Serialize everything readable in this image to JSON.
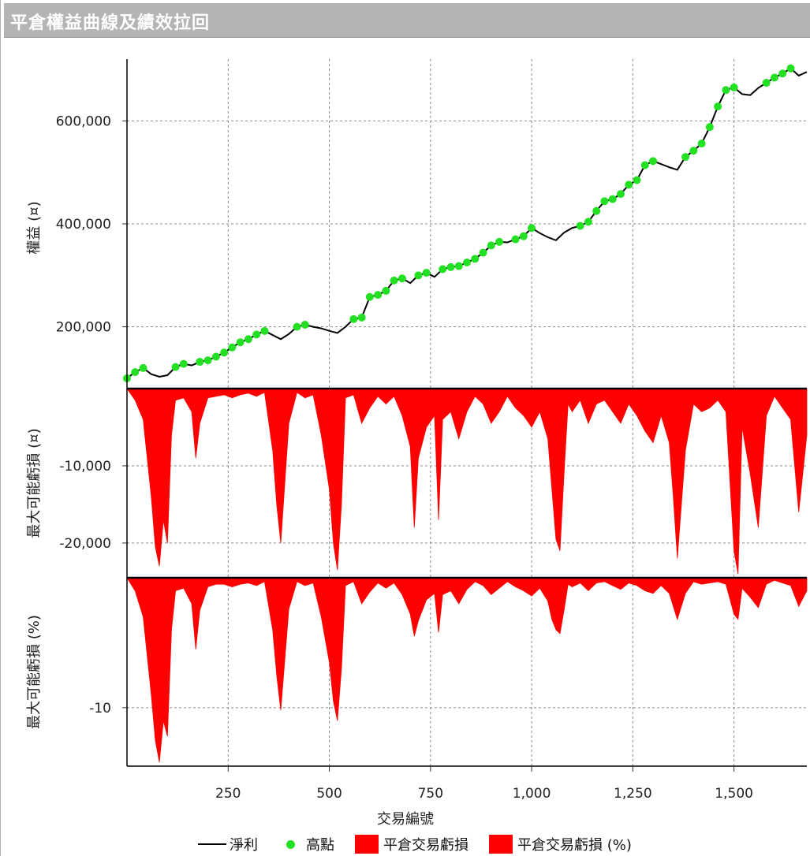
{
  "title": "平倉權益曲線及績效拉回",
  "colors": {
    "equity_line": "#000000",
    "high_point": "#22e022",
    "drawdown": "#ff0000",
    "grid": "#888888"
  },
  "chart_data": [
    {
      "type": "line",
      "panel": "equity",
      "ylabel": "權益 (¤)",
      "ylim": [
        80000,
        720000
      ],
      "yticks": [
        200000,
        400000,
        600000
      ],
      "ytick_labels": [
        "200,000",
        "400,000",
        "600,000"
      ],
      "xlim": [
        0,
        1680
      ],
      "series": [
        {
          "name": "淨利",
          "x": [
            0,
            20,
            40,
            60,
            80,
            100,
            120,
            140,
            160,
            180,
            200,
            220,
            240,
            260,
            280,
            300,
            320,
            340,
            360,
            380,
            400,
            420,
            440,
            460,
            480,
            500,
            520,
            540,
            560,
            580,
            600,
            620,
            640,
            660,
            680,
            700,
            720,
            740,
            760,
            780,
            800,
            820,
            840,
            860,
            880,
            900,
            920,
            940,
            960,
            980,
            1000,
            1020,
            1040,
            1060,
            1080,
            1100,
            1120,
            1140,
            1160,
            1180,
            1200,
            1220,
            1240,
            1260,
            1280,
            1300,
            1320,
            1340,
            1360,
            1380,
            1400,
            1420,
            1440,
            1460,
            1480,
            1500,
            1520,
            1540,
            1560,
            1580,
            1600,
            1620,
            1640,
            1660,
            1680
          ],
          "y": [
            100000,
            112000,
            120000,
            108000,
            103000,
            106000,
            122000,
            128000,
            125000,
            132000,
            135000,
            142000,
            150000,
            160000,
            170000,
            176000,
            185000,
            192000,
            184000,
            176000,
            186000,
            200000,
            204000,
            200000,
            197000,
            192000,
            188000,
            200000,
            215000,
            218000,
            258000,
            262000,
            270000,
            290000,
            294000,
            285000,
            300000,
            305000,
            297000,
            312000,
            316000,
            318000,
            325000,
            332000,
            344000,
            358000,
            365000,
            364000,
            370000,
            376000,
            392000,
            382000,
            374000,
            368000,
            383000,
            392000,
            396000,
            404000,
            425000,
            444000,
            448000,
            458000,
            476000,
            485000,
            514000,
            522000,
            516000,
            510000,
            505000,
            530000,
            542000,
            556000,
            588000,
            628000,
            660000,
            665000,
            652000,
            650000,
            664000,
            674000,
            684000,
            692000,
            702000,
            688000,
            695000
          ]
        },
        {
          "name": "高點",
          "marker": "dot"
        }
      ]
    },
    {
      "type": "area",
      "panel": "drawdown_amount",
      "ylabel": "最大可能虧損 (¤)",
      "ylim": [
        -24500,
        0
      ],
      "yticks": [
        -10000,
        -20000
      ],
      "ytick_labels": [
        "-10,000",
        "-20,000"
      ],
      "series": [
        {
          "name": "平倉交易虧損",
          "x": [
            0,
            20,
            40,
            60,
            70,
            80,
            90,
            100,
            110,
            120,
            140,
            160,
            170,
            180,
            200,
            220,
            240,
            260,
            280,
            300,
            320,
            340,
            360,
            370,
            380,
            400,
            420,
            440,
            460,
            480,
            500,
            510,
            520,
            530,
            540,
            560,
            580,
            600,
            620,
            640,
            660,
            680,
            700,
            710,
            720,
            740,
            760,
            770,
            780,
            800,
            820,
            840,
            860,
            880,
            900,
            920,
            940,
            960,
            980,
            1000,
            1020,
            1040,
            1050,
            1060,
            1070,
            1080,
            1090,
            1100,
            1120,
            1140,
            1160,
            1180,
            1200,
            1220,
            1240,
            1260,
            1280,
            1300,
            1320,
            1340,
            1350,
            1360,
            1380,
            1400,
            1420,
            1440,
            1460,
            1480,
            1500,
            1510,
            1520,
            1540,
            1560,
            1580,
            1600,
            1620,
            1640,
            1660,
            1680
          ],
          "y": [
            0,
            -1500,
            -4000,
            -14000,
            -20500,
            -23000,
            -17000,
            -20000,
            -6000,
            -1500,
            -1200,
            -3000,
            -9000,
            -4500,
            -1200,
            -1000,
            -800,
            -1200,
            -800,
            -600,
            -1000,
            -500,
            -8000,
            -15000,
            -20000,
            -4500,
            -500,
            -1200,
            -800,
            -6000,
            -13000,
            -20000,
            -23500,
            -15000,
            -1200,
            -800,
            -4500,
            -2500,
            -1000,
            -2000,
            -1000,
            -3500,
            -7500,
            -18000,
            -9000,
            -5000,
            -3500,
            -17000,
            -4000,
            -3000,
            -6500,
            -3000,
            -1000,
            -2000,
            -4500,
            -3000,
            -1000,
            -2500,
            -3500,
            -5000,
            -3000,
            -6500,
            -13000,
            -19500,
            -21000,
            -11000,
            -2000,
            -3000,
            -1500,
            -4500,
            -2000,
            -1500,
            -3000,
            -4500,
            -2000,
            -3500,
            -5500,
            -7000,
            -3500,
            -7000,
            -14000,
            -22000,
            -8000,
            -2000,
            -3000,
            -2500,
            -1500,
            -3000,
            -21000,
            -24000,
            -5000,
            -11000,
            -18000,
            -3500,
            -1000,
            -2500,
            -4000,
            -16000,
            -6000
          ]
        }
      ]
    },
    {
      "type": "area",
      "panel": "drawdown_percent",
      "ylabel": "最大可能虧損 (%)",
      "ylim": [
        -14.5,
        0
      ],
      "yticks": [
        -10
      ],
      "ytick_labels": [
        "-10"
      ],
      "xlabel": "交易編號",
      "xticks": [
        250,
        500,
        750,
        1000,
        1250,
        1500
      ],
      "xtick_labels": [
        "250",
        "500",
        "750",
        "1,000",
        "1,250",
        "1,500"
      ],
      "series": [
        {
          "name": "平倉交易虧損 (%)",
          "x": [
            0,
            20,
            40,
            60,
            70,
            80,
            90,
            100,
            110,
            120,
            140,
            160,
            170,
            180,
            200,
            220,
            240,
            260,
            280,
            300,
            320,
            340,
            360,
            370,
            380,
            400,
            420,
            440,
            460,
            480,
            500,
            510,
            520,
            530,
            540,
            560,
            580,
            600,
            620,
            640,
            660,
            680,
            700,
            710,
            720,
            740,
            760,
            770,
            780,
            800,
            820,
            840,
            860,
            880,
            900,
            920,
            940,
            960,
            980,
            1000,
            1020,
            1040,
            1050,
            1060,
            1070,
            1080,
            1090,
            1100,
            1120,
            1140,
            1160,
            1180,
            1200,
            1220,
            1240,
            1260,
            1280,
            1300,
            1320,
            1340,
            1350,
            1360,
            1380,
            1400,
            1420,
            1440,
            1460,
            1480,
            1500,
            1510,
            1520,
            1540,
            1560,
            1580,
            1600,
            1620,
            1640,
            1660,
            1680
          ],
          "y": [
            0,
            -1,
            -3,
            -9,
            -12.5,
            -14.2,
            -11,
            -12.2,
            -4,
            -1,
            -0.8,
            -2,
            -5.5,
            -2.5,
            -0.7,
            -0.5,
            -0.5,
            -0.7,
            -0.5,
            -0.4,
            -0.6,
            -0.3,
            -4,
            -7.5,
            -10.2,
            -2.4,
            -0.3,
            -0.6,
            -0.4,
            -3,
            -6.5,
            -9.5,
            -11,
            -7,
            -0.6,
            -0.3,
            -2,
            -1.1,
            -0.4,
            -0.8,
            -0.4,
            -1.3,
            -2.8,
            -4.5,
            -3.3,
            -1.7,
            -1.2,
            -4.2,
            -1.3,
            -1,
            -2,
            -0.9,
            -0.3,
            -0.6,
            -1.3,
            -0.8,
            -0.3,
            -0.7,
            -1,
            -1.4,
            -0.8,
            -1.8,
            -3.2,
            -4,
            -4.3,
            -2.5,
            -0.5,
            -0.7,
            -0.4,
            -1,
            -0.4,
            -0.3,
            -0.6,
            -0.9,
            -0.4,
            -0.6,
            -1,
            -1.2,
            -0.6,
            -1.2,
            -2.2,
            -3.2,
            -1.2,
            -0.3,
            -0.5,
            -0.4,
            -0.3,
            -0.5,
            -2.8,
            -3.2,
            -0.8,
            -1.5,
            -2.3,
            -0.5,
            -0.2,
            -0.4,
            -0.6,
            -2.2,
            -1
          ]
        }
      ]
    }
  ],
  "legend": {
    "items": [
      {
        "label": "淨利",
        "kind": "line"
      },
      {
        "label": "高點",
        "kind": "dot"
      },
      {
        "label": "平倉交易虧損",
        "kind": "box"
      },
      {
        "label": "平倉交易虧損 (%)",
        "kind": "box"
      }
    ]
  }
}
